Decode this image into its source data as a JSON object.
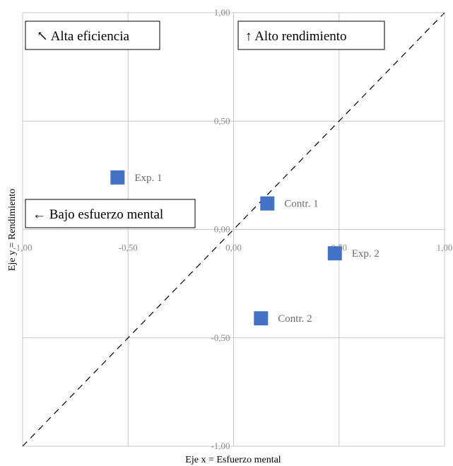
{
  "chart_data": {
    "type": "scatter",
    "xlabel": "Eje x = Esfuerzo mental",
    "ylabel": "Eje y = Rendimiento",
    "xlim": [
      -1,
      1
    ],
    "ylim": [
      -1,
      1
    ],
    "x_ticks": [
      "-1,00",
      "-0,50",
      "0,00",
      "0,50",
      "1,00"
    ],
    "y_ticks": [
      "1,00",
      "0,50",
      "0,00",
      "-0,50",
      "-1,00"
    ],
    "grid": true,
    "diagonal_reference_line": true,
    "marker_color": "#4472C4",
    "points": [
      {
        "label": "Exp. 1",
        "x": -0.55,
        "y": 0.24
      },
      {
        "label": "Contr. 1",
        "x": 0.16,
        "y": 0.12
      },
      {
        "label": "Exp. 2",
        "x": 0.48,
        "y": -0.11
      },
      {
        "label": "Contr. 2",
        "x": 0.13,
        "y": -0.41
      }
    ],
    "annotations": [
      {
        "id": "alta-eficiencia",
        "text": "↖ Alta eficiencia"
      },
      {
        "id": "alto-rendimiento",
        "text": "↑  Alto rendimiento"
      },
      {
        "id": "bajo-esfuerzo",
        "text": "← Bajo esfuerzo mental"
      }
    ]
  }
}
